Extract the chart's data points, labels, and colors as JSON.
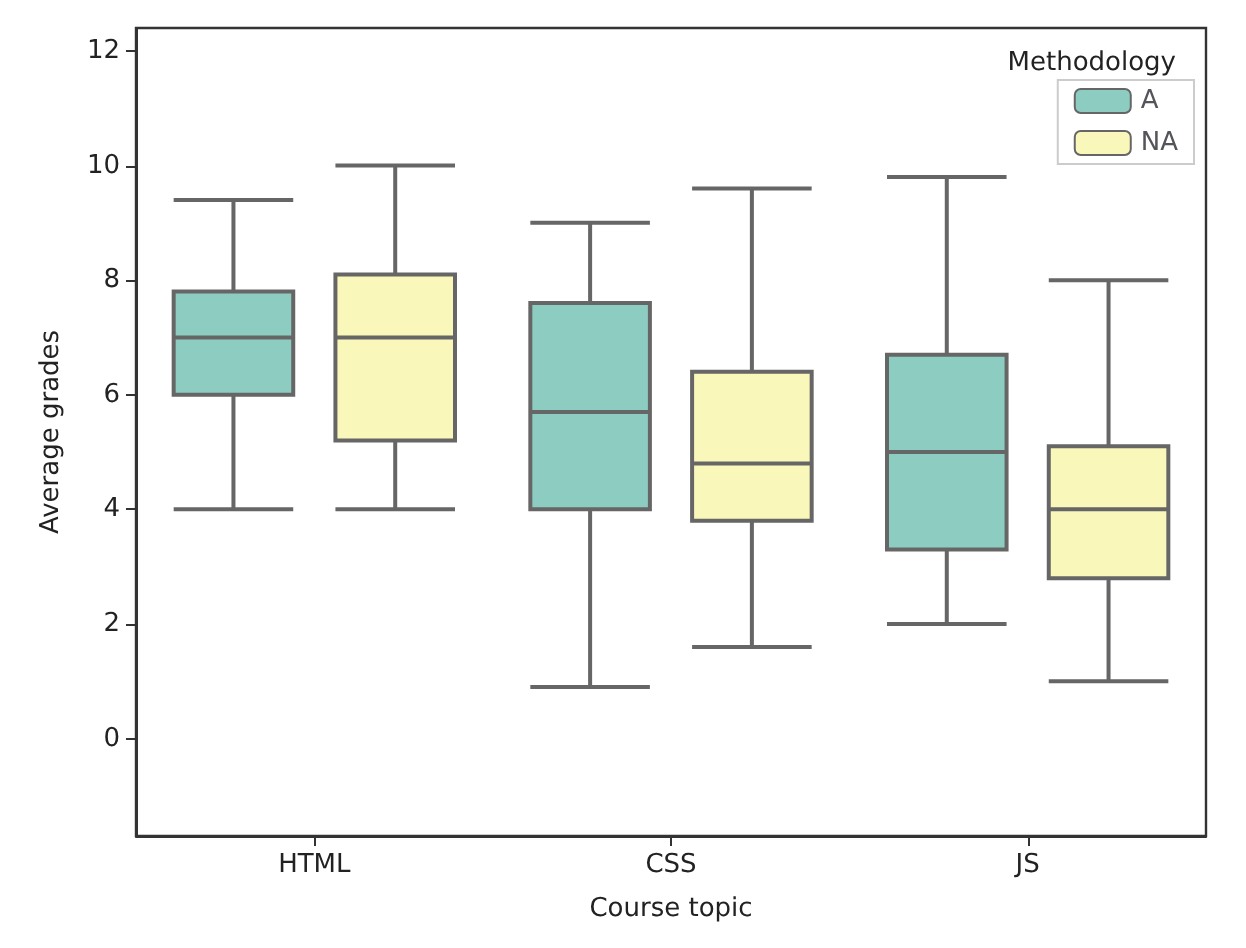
{
  "chart_data": {
    "type": "box",
    "xlabel": "Course topic",
    "ylabel": "Average grades",
    "categories": [
      "HTML",
      "CSS",
      "JS"
    ],
    "ylim": [
      -1.7,
      12.4
    ],
    "yticks": [
      0,
      2,
      4,
      6,
      8,
      10,
      12
    ],
    "grid": false,
    "legend": "top right",
    "legend_title": "Methodology",
    "series": [
      {
        "name": "A",
        "color": "#8dcdc1",
        "boxes": [
          {
            "low": 4.0,
            "q1": 6.0,
            "median": 7.0,
            "q3": 7.8,
            "high": 9.4
          },
          {
            "low": 0.9,
            "q1": 4.0,
            "median": 5.7,
            "q3": 7.6,
            "high": 9.0
          },
          {
            "low": 2.0,
            "q1": 3.3,
            "median": 5.0,
            "q3": 6.7,
            "high": 9.8
          }
        ]
      },
      {
        "name": "NA",
        "color": "#f9f7b9",
        "boxes": [
          {
            "low": 4.0,
            "q1": 5.2,
            "median": 7.0,
            "q3": 8.1,
            "high": 10.0
          },
          {
            "low": 1.6,
            "q1": 3.8,
            "median": 4.8,
            "q3": 6.4,
            "high": 9.6
          },
          {
            "low": 1.0,
            "q1": 2.8,
            "median": 4.0,
            "q3": 5.1,
            "high": 8.0
          }
        ]
      }
    ]
  }
}
